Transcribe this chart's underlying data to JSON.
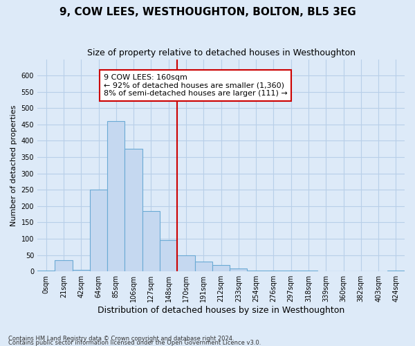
{
  "title": "9, COW LEES, WESTHOUGHTON, BOLTON, BL5 3EG",
  "subtitle": "Size of property relative to detached houses in Westhoughton",
  "xlabel": "Distribution of detached houses by size in Westhoughton",
  "ylabel": "Number of detached properties",
  "footnote1": "Contains HM Land Registry data © Crown copyright and database right 2024.",
  "footnote2": "Contains public sector information licensed under the Open Government Licence v3.0.",
  "bar_labels": [
    "0sqm",
    "21sqm",
    "42sqm",
    "64sqm",
    "85sqm",
    "106sqm",
    "127sqm",
    "148sqm",
    "170sqm",
    "191sqm",
    "212sqm",
    "233sqm",
    "254sqm",
    "276sqm",
    "297sqm",
    "318sqm",
    "339sqm",
    "360sqm",
    "382sqm",
    "403sqm",
    "424sqm"
  ],
  "bar_values": [
    2,
    35,
    5,
    250,
    460,
    375,
    185,
    95,
    50,
    30,
    20,
    8,
    3,
    2,
    2,
    2,
    0,
    0,
    0,
    0,
    2
  ],
  "bar_color": "#c5d8f0",
  "bar_edge_color": "#6aaad4",
  "vline_x": 7.5,
  "vline_color": "#cc0000",
  "annotation_text": "9 COW LEES: 160sqm\n← 92% of detached houses are smaller (1,360)\n8% of semi-detached houses are larger (111) →",
  "annotation_box_color": "white",
  "annotation_edge_color": "#cc0000",
  "ylim": [
    0,
    650
  ],
  "yticks": [
    0,
    50,
    100,
    150,
    200,
    250,
    300,
    350,
    400,
    450,
    500,
    550,
    600
  ],
  "background_color": "#ddeaf8",
  "grid_color": "#b8cfe8",
  "title_fontsize": 11,
  "subtitle_fontsize": 9,
  "xlabel_fontsize": 9,
  "ylabel_fontsize": 8,
  "tick_fontsize": 7,
  "annotation_fontsize": 8
}
